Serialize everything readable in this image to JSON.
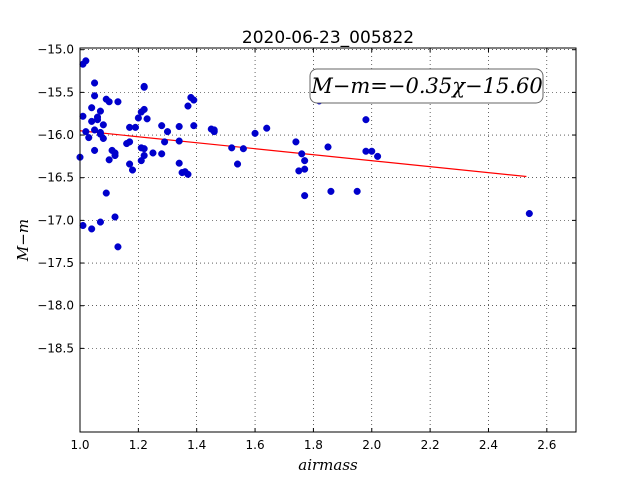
{
  "chart_data": {
    "type": "scatter",
    "title": "2020-06-23_005822",
    "xlabel": "airmass",
    "ylabel": "M−m",
    "xlim": [
      1.0,
      2.7
    ],
    "ylim": [
      -14.98,
      -19.48
    ],
    "y_inverted": true,
    "grid": true,
    "xticks": [
      "1.0",
      "1.2",
      "1.4",
      "1.6",
      "1.8",
      "2.0",
      "2.2",
      "2.4",
      "2.6"
    ],
    "xtick_values": [
      1.0,
      1.2,
      1.4,
      1.6,
      1.8,
      2.0,
      2.2,
      2.4,
      2.6
    ],
    "yticks": [
      "−15.0",
      "−15.5",
      "−16.0",
      "−16.5",
      "−17.0",
      "−17.5",
      "−18.0",
      "−18.5"
    ],
    "ytick_values": [
      -15.0,
      -15.5,
      -16.0,
      -16.5,
      -17.0,
      -17.5,
      -18.0,
      -18.5
    ],
    "annotation": "M−m=−0.35χ−15.60",
    "annotation_position": "top-right",
    "fit_line": {
      "x": [
        1.0,
        2.53
      ],
      "y": [
        -15.95,
        -16.486
      ],
      "color": "#ff0000"
    },
    "point_color": "#0000cc",
    "points": [
      [
        1.0,
        -16.26
      ],
      [
        1.01,
        -17.06
      ],
      [
        1.01,
        -15.17
      ],
      [
        1.01,
        -15.78
      ],
      [
        1.02,
        -15.13
      ],
      [
        1.02,
        -15.96
      ],
      [
        1.03,
        -16.03
      ],
      [
        1.04,
        -15.84
      ],
      [
        1.04,
        -17.1
      ],
      [
        1.04,
        -15.68
      ],
      [
        1.05,
        -15.54
      ],
      [
        1.05,
        -15.39
      ],
      [
        1.05,
        -16.18
      ],
      [
        1.05,
        -15.94
      ],
      [
        1.06,
        -15.79
      ],
      [
        1.06,
        -15.82
      ],
      [
        1.07,
        -15.72
      ],
      [
        1.07,
        -15.97
      ],
      [
        1.07,
        -15.99
      ],
      [
        1.07,
        -17.02
      ],
      [
        1.08,
        -16.04
      ],
      [
        1.08,
        -15.88
      ],
      [
        1.09,
        -15.58
      ],
      [
        1.09,
        -16.68
      ],
      [
        1.1,
        -16.29
      ],
      [
        1.1,
        -15.61
      ],
      [
        1.11,
        -16.18
      ],
      [
        1.12,
        -16.21
      ],
      [
        1.12,
        -16.24
      ],
      [
        1.12,
        -16.96
      ],
      [
        1.13,
        -15.61
      ],
      [
        1.13,
        -17.31
      ],
      [
        1.16,
        -16.1
      ],
      [
        1.17,
        -15.91
      ],
      [
        1.17,
        -16.08
      ],
      [
        1.17,
        -16.34
      ],
      [
        1.18,
        -16.41
      ],
      [
        1.19,
        -15.91
      ],
      [
        1.2,
        -15.8
      ],
      [
        1.21,
        -15.73
      ],
      [
        1.21,
        -16.15
      ],
      [
        1.21,
        -16.3
      ],
      [
        1.22,
        -15.43
      ],
      [
        1.22,
        -15.44
      ],
      [
        1.22,
        -15.7
      ],
      [
        1.22,
        -16.16
      ],
      [
        1.22,
        -16.24
      ],
      [
        1.23,
        -15.81
      ],
      [
        1.25,
        -16.21
      ],
      [
        1.28,
        -16.22
      ],
      [
        1.28,
        -15.89
      ],
      [
        1.29,
        -16.08
      ],
      [
        1.3,
        -15.96
      ],
      [
        1.34,
        -15.9
      ],
      [
        1.34,
        -16.07
      ],
      [
        1.34,
        -16.33
      ],
      [
        1.35,
        -16.44
      ],
      [
        1.36,
        -16.43
      ],
      [
        1.37,
        -16.46
      ],
      [
        1.37,
        -15.66
      ],
      [
        1.38,
        -15.56
      ],
      [
        1.39,
        -15.59
      ],
      [
        1.39,
        -15.89
      ],
      [
        1.45,
        -15.93
      ],
      [
        1.46,
        -15.96
      ],
      [
        1.46,
        -15.94
      ],
      [
        1.52,
        -16.15
      ],
      [
        1.54,
        -16.34
      ],
      [
        1.56,
        -16.16
      ],
      [
        1.6,
        -15.98
      ],
      [
        1.64,
        -15.92
      ],
      [
        1.74,
        -16.08
      ],
      [
        1.75,
        -16.42
      ],
      [
        1.76,
        -16.22
      ],
      [
        1.77,
        -16.4
      ],
      [
        1.77,
        -16.71
      ],
      [
        1.77,
        -16.3
      ],
      [
        1.82,
        -15.6
      ],
      [
        1.85,
        -16.14
      ],
      [
        1.86,
        -16.66
      ],
      [
        1.95,
        -16.66
      ],
      [
        1.98,
        -16.19
      ],
      [
        1.98,
        -15.82
      ],
      [
        2.0,
        -16.19
      ],
      [
        2.02,
        -16.25
      ],
      [
        2.54,
        -16.92
      ]
    ]
  }
}
